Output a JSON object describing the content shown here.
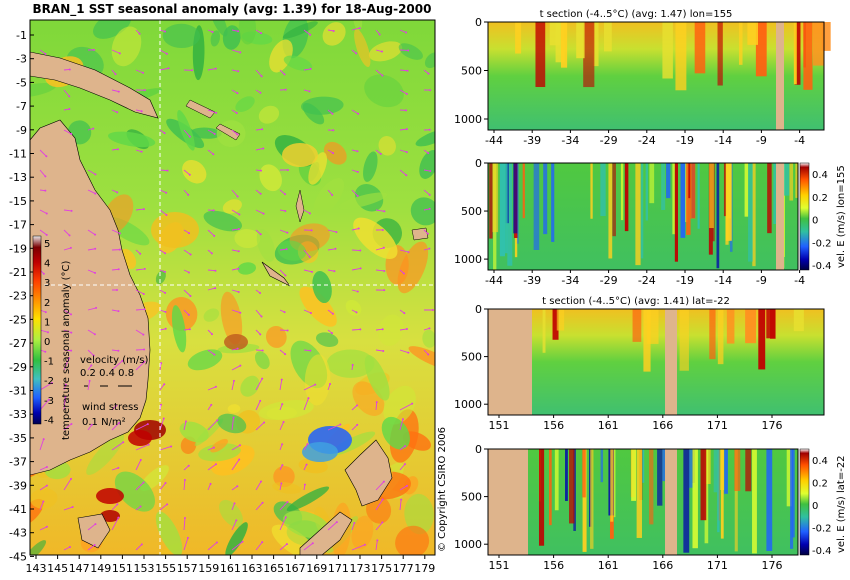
{
  "main_map": {
    "title": "BRAN_1  SST seasonal anomaly  (avg: 1.39) for 18-Aug-2000",
    "lat_ticks": [
      "-1",
      "-3",
      "-5",
      "-7",
      "-9",
      "-11",
      "-13",
      "-15",
      "-17",
      "-19",
      "-21",
      "-23",
      "-25",
      "-27",
      "-29",
      "-31",
      "-33",
      "-35",
      "-37",
      "-39",
      "-41",
      "-43",
      "-45"
    ],
    "lon_ticks": [
      "143",
      "145",
      "147",
      "149",
      "151",
      "153",
      "155",
      "157",
      "159",
      "161",
      "163",
      "165",
      "167",
      "169",
      "171",
      "173",
      "175",
      "177",
      "179"
    ],
    "colorbar": {
      "ticks": [
        "5",
        "4",
        "3",
        "2",
        "1",
        "0",
        "-1",
        "-2",
        "-3",
        "-4"
      ],
      "label": "temperature seasonal anomaly (°C)"
    },
    "velocity_key": {
      "label": "velocity (m/s)",
      "values": "0.2 0.4 0.8"
    },
    "wind_key": {
      "label": "wind stress",
      "value": "0.1 N/m²"
    },
    "copyright": "© Copyright CSIRO 2006"
  },
  "panels": [
    {
      "title": "t section (-4..5°C)  (avg: 1.47)  lon=155",
      "y_ticks": [
        "0",
        "500",
        "1000"
      ],
      "x_ticks": [
        "-44",
        "-39",
        "-34",
        "-29",
        "-24",
        "-19",
        "-14",
        "-9",
        "-4"
      ],
      "colorbar": null
    },
    {
      "title": "",
      "y_ticks": [
        "0",
        "500",
        "1000"
      ],
      "x_ticks": [
        "-44",
        "-39",
        "-34",
        "-29",
        "-24",
        "-19",
        "-14",
        "-9",
        "-4"
      ],
      "colorbar": {
        "ticks": [
          "0.4",
          "0.2",
          "0",
          "-0.2",
          "-0.4"
        ],
        "label": "vel. E (m/s)  lon=155"
      }
    },
    {
      "title": "t section (-4..5°C)  (avg: 1.41)  lat=-22",
      "y_ticks": [
        "0",
        "500",
        "1000"
      ],
      "x_ticks": [
        "151",
        "156",
        "161",
        "166",
        "171",
        "176"
      ],
      "colorbar": null
    },
    {
      "title": "",
      "y_ticks": [
        "0",
        "500",
        "1000"
      ],
      "x_ticks": [
        "151",
        "156",
        "161",
        "166",
        "171",
        "176"
      ],
      "colorbar": {
        "ticks": [
          "0.4",
          "0.2",
          "0",
          "-0.2",
          "-0.4"
        ],
        "label": "vel. E (m/s)  lat=-22"
      }
    }
  ],
  "chart_data": [
    {
      "type": "heatmap",
      "title": "BRAN_1  SST seasonal anomaly  (avg: 1.39) for 18-Aug-2000",
      "xlabel": "",
      "ylabel": "",
      "xlim": [
        143,
        180
      ],
      "ylim": [
        -45,
        0
      ],
      "zlim": [
        -4,
        5
      ],
      "zlabel": "temperature seasonal anomaly (°C)"
    },
    {
      "type": "heatmap",
      "title": "t section (-4..5°C)  (avg: 1.47)  lon=155",
      "xlim": [
        -45,
        0
      ],
      "ylim": [
        0,
        1050
      ],
      "y_reversed": true
    },
    {
      "type": "heatmap",
      "title": "",
      "xlim": [
        -45,
        0
      ],
      "ylim": [
        0,
        1050
      ],
      "y_reversed": true,
      "zlim": [
        -0.4,
        0.4
      ],
      "zlabel": "vel. E (m/s)  lon=155"
    },
    {
      "type": "heatmap",
      "title": "t section (-4..5°C)  (avg: 1.41)  lat=-22",
      "xlim": [
        150,
        180
      ],
      "ylim": [
        0,
        1050
      ],
      "y_reversed": true
    },
    {
      "type": "heatmap",
      "title": "",
      "xlim": [
        150,
        180
      ],
      "ylim": [
        0,
        1050
      ],
      "y_reversed": true,
      "zlim": [
        -0.4,
        0.4
      ],
      "zlabel": "vel. E (m/s)  lat=-22"
    }
  ],
  "palette": {
    "background": "#ffffff",
    "land": "#deb48c",
    "grid": "#ffffff",
    "arrow": "#e040e0",
    "cb_anom": [
      "#e8e8e8",
      "#ffffff",
      "#c8c8c8",
      "#7a0000",
      "#c00000",
      "#ff2000",
      "#ff8000",
      "#ffc000",
      "#fff000",
      "#c0ff40",
      "#40e060",
      "#20b040",
      "#60d0d0",
      "#2080ff",
      "#0000c0",
      "#000060"
    ],
    "cb_vel": [
      "#ffffff",
      "#c00000",
      "#ff6000",
      "#ffc000",
      "#f0ff20",
      "#80e040",
      "#30c040",
      "#30c0b0",
      "#2060ff",
      "#0000b0",
      "#000040"
    ]
  }
}
